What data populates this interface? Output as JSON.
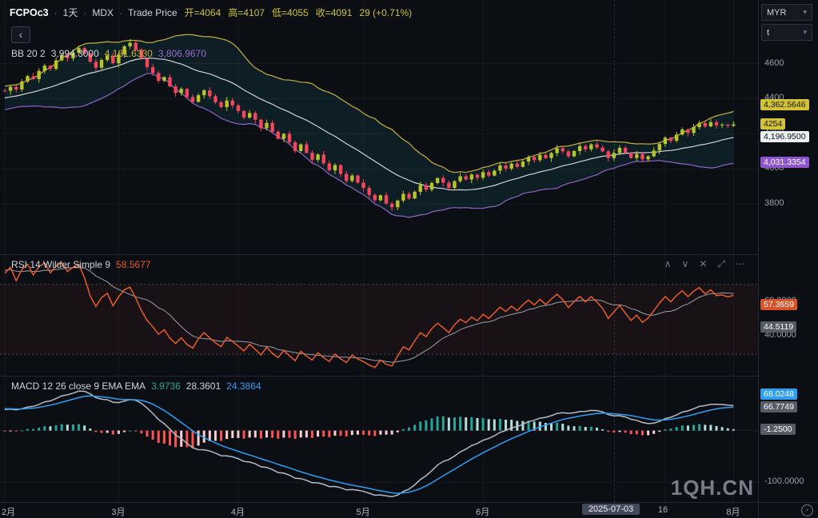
{
  "header": {
    "symbol": "FCPOc3",
    "interval": "1天",
    "exchange": "MDX",
    "series_type": "Trade Price",
    "open": "开=4064",
    "high": "高=4107",
    "low": "低=4055",
    "close": "收=4091",
    "change": "29 (+0.71%)"
  },
  "indicators": {
    "bb": {
      "title": "BB 20 2",
      "basis": "3,994.3000",
      "upper": "4,181.6330",
      "lower": "3,806.9670"
    },
    "rsi": {
      "title": "RSI 14 Wilder Simple 9",
      "value": "58.5677"
    },
    "macd": {
      "title": "MACD 12 26 close 9 EMA EMA",
      "hist": "3.9736",
      "macd": "28.3601",
      "signal": "24.3864"
    }
  },
  "price_axis": {
    "currency": "MYR",
    "unit": "t",
    "ticks": [
      {
        "label": "4600",
        "value": 4600
      },
      {
        "label": "4400",
        "value": 4400
      },
      {
        "label": "4200",
        "value": 4200
      },
      {
        "label": "4000",
        "value": 4000
      },
      {
        "label": "3800",
        "value": 3800
      }
    ],
    "badges": [
      {
        "label": "4,362.5646",
        "value": 4362.5646,
        "style": "yellow",
        "name": "bb-upper-badge"
      },
      {
        "label": "4254",
        "value": 4254,
        "style": "yellow",
        "name": "last-price-badge"
      },
      {
        "label": "4,196.9500",
        "value": 4196.95,
        "style": "white",
        "name": "bb-basis-badge"
      },
      {
        "label": "4,031.3354",
        "value": 4031.3354,
        "style": "purple",
        "name": "bb-lower-badge"
      }
    ]
  },
  "rsi_axis": {
    "ticks": [
      {
        "label": "60.0000",
        "value": 60
      },
      {
        "label": "40.0000",
        "value": 40
      }
    ],
    "badges": [
      {
        "label": "57.3659",
        "value": 57.3659,
        "style": "orange",
        "name": "rsi-value-badge"
      },
      {
        "label": "44.5119",
        "value": 44.5119,
        "style": "gray",
        "name": "rsi-ma-badge"
      }
    ]
  },
  "macd_axis": {
    "ticks": [
      {
        "label": "-100.0000",
        "value": -100
      }
    ],
    "badges": [
      {
        "label": "68.0248",
        "value": 68.0248,
        "style": "blue",
        "name": "macd-signal-badge"
      },
      {
        "label": "66.7749",
        "value": 66.7749,
        "style": "gray",
        "name": "macd-line-badge"
      },
      {
        "label": "-1.2500",
        "value": -1.25,
        "style": "gray",
        "name": "macd-hist-badge"
      }
    ]
  },
  "time_axis": {
    "ticks": [
      {
        "label": "2月",
        "i": 0
      },
      {
        "label": "3月",
        "i": 20
      },
      {
        "label": "4月",
        "i": 41
      },
      {
        "label": "5月",
        "i": 63
      },
      {
        "label": "6月",
        "i": 84
      },
      {
        "label": "16",
        "i": 116
      },
      {
        "label": "8月",
        "i": 128
      }
    ],
    "crosshair": {
      "label": "2025-07-03",
      "i": 107
    }
  },
  "watermark": "1QH.CN",
  "icons": {
    "back_glyph": "‹",
    "caret_glyph": "▾",
    "jump_glyph": "›"
  },
  "pane_controls": [
    {
      "name": "chevron-up-icon",
      "glyph": "∧"
    },
    {
      "name": "chevron-down-icon",
      "glyph": "∨"
    },
    {
      "name": "close-icon",
      "glyph": "✕"
    },
    {
      "name": "maximize-icon",
      "glyph": "⤢"
    },
    {
      "name": "more-options-icon",
      "glyph": "⋯"
    }
  ],
  "chart_data": {
    "type": "candlestick",
    "symbol": "FCPOc3",
    "interval": "1D",
    "panes": [
      "price+bollinger",
      "rsi",
      "macd"
    ],
    "crosshair_bar": {
      "date": "2025-07-03",
      "open": 4064,
      "high": 4107,
      "low": 4055,
      "close": 4091,
      "change": 29,
      "change_pct": 0.71
    },
    "last_price": 4254,
    "bb": {
      "period": 20,
      "stddev": 2
    },
    "rsi": {
      "period": 14,
      "ma": 9
    },
    "macd": {
      "fast": 12,
      "slow": 26,
      "signal": 9
    },
    "price_range": [
      3560,
      4880
    ],
    "rsi_range": [
      20,
      85
    ],
    "macd_range": [
      -130,
      95
    ],
    "warmup": [
      4200,
      4212,
      4228,
      4220,
      4242,
      4258,
      4250,
      4268,
      4282,
      4274,
      4292,
      4308,
      4300,
      4318,
      4332,
      4324,
      4342,
      4358,
      4350,
      4364,
      4378,
      4370,
      4388,
      4402,
      4394,
      4408,
      4418,
      4410,
      4424,
      4434,
      4426,
      4438,
      4448,
      4440,
      4446
    ],
    "closes": [
      4445,
      4468,
      4452,
      4498,
      4528,
      4512,
      4558,
      4588,
      4570,
      4618,
      4648,
      4630,
      4662,
      4688,
      4658,
      4610,
      4576,
      4620,
      4645,
      4602,
      4652,
      4698,
      4718,
      4678,
      4628,
      4580,
      4546,
      4502,
      4522,
      4470,
      4432,
      4456,
      4410,
      4382,
      4420,
      4448,
      4414,
      4380,
      4352,
      4390,
      4362,
      4330,
      4292,
      4318,
      4280,
      4232,
      4262,
      4212,
      4172,
      4200,
      4152,
      4102,
      4140,
      4092,
      4052,
      4082,
      4032,
      3992,
      4022,
      3972,
      3932,
      3962,
      3922,
      3892,
      3852,
      3822,
      3850,
      3802,
      3782,
      3820,
      3858,
      3832,
      3870,
      3908,
      3882,
      3920,
      3948,
      3922,
      3892,
      3930,
      3958,
      3940,
      3968,
      3950,
      3982,
      3962,
      3990,
      4020,
      4002,
      4030,
      4012,
      4042,
      4068,
      4050,
      4080,
      4062,
      4090,
      4118,
      4100,
      4072,
      4102,
      4130,
      4112,
      4140,
      4122,
      4100,
      4062,
      4091,
      4120,
      4092,
      4062,
      4085,
      4055,
      4072,
      4105,
      4142,
      4178,
      4160,
      4196,
      4225,
      4205,
      4238,
      4262,
      4242,
      4266,
      4248,
      4252,
      4246,
      4254
    ],
    "colors": {
      "up": "#b8c42a",
      "down": "#f4465d",
      "bb_upper": "#c9b13c",
      "bb_basis": "#cfd3dc",
      "bb_lower": "#9064c8",
      "bb_fill": "rgba(36,180,190,0.10)",
      "rsi_line": "#e85d2b",
      "rsi_ma": "#9aa0aa",
      "rsi_fill": "rgba(230,70,60,0.06)",
      "band_line": "rgba(190,195,205,0.35)",
      "macd_line": "#b6bac3",
      "macd_signal": "#2f9ef5",
      "hist": {
        "grow_above": "#26a69a",
        "fall_above": "#b2dfdb",
        "fall_below": "#ff5252",
        "grow_below": "#ffcdd2"
      },
      "badge_yellow": "#d3c232",
      "badge_white": "#eceff1",
      "badge_purple": "#8e55ce",
      "badge_orange": "#d5542b",
      "badge_blue": "#2f9ef5",
      "badge_gray": "#565b66"
    }
  }
}
